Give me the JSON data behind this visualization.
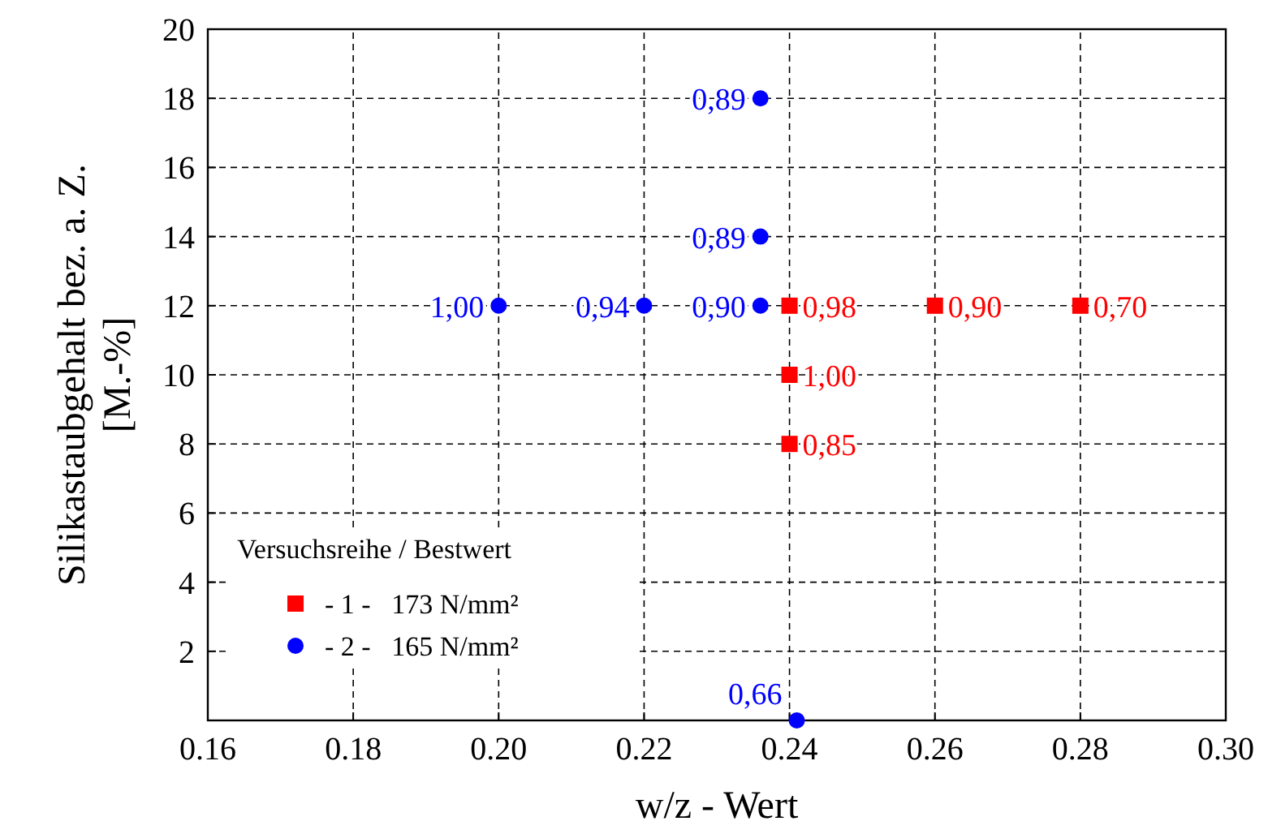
{
  "chart_data": {
    "type": "scatter",
    "xlabel": "w/z - Wert",
    "ylabel": "Silikastaubgehalt bez. a. Z.\n[M.-%]",
    "legend_title": "Versuchsreihe / Bestwert",
    "xlim": [
      0.16,
      0.3
    ],
    "xticks": [
      {
        "value": 0.16,
        "label": "0.16"
      },
      {
        "value": 0.18,
        "label": "0.18"
      },
      {
        "value": 0.2,
        "label": "0.20"
      },
      {
        "value": 0.22,
        "label": "0.22"
      },
      {
        "value": 0.24,
        "label": "0.24"
      },
      {
        "value": 0.26,
        "label": "0.26"
      },
      {
        "value": 0.28,
        "label": "0.28"
      },
      {
        "value": 0.3,
        "label": "0.30"
      }
    ],
    "ylim": [
      0,
      20
    ],
    "yticks": [
      2,
      4,
      6,
      8,
      10,
      12,
      14,
      16,
      18,
      20
    ],
    "grid": true,
    "legend": "bottom left",
    "series": [
      {
        "name": "- 1 -   173 N/mm²",
        "color": "#ff0000",
        "marker": "square",
        "x": [
          0.24,
          0.24,
          0.24,
          0.26,
          0.28
        ],
        "values": [
          12,
          10,
          8,
          12,
          12
        ]
      },
      {
        "name": "- 2 -   165 N/mm²",
        "color": "#0000ff",
        "marker": "circle",
        "x": [
          0.236,
          0.236,
          0.236,
          0.22,
          0.2,
          0.241
        ],
        "values": [
          18,
          14,
          12,
          12,
          12,
          0
        ]
      }
    ],
    "annotations": [
      {
        "text": "0,98",
        "x": 0.24,
        "y": 12
      },
      {
        "text": "1,00",
        "x": 0.24,
        "y": 10
      },
      {
        "text": "0,85",
        "x": 0.24,
        "y": 8
      },
      {
        "text": "0,90",
        "x": 0.26,
        "y": 12
      },
      {
        "text": "0,70",
        "x": 0.28,
        "y": 12
      },
      {
        "text": "0,89",
        "x": 0.236,
        "y": 18
      },
      {
        "text": "0,89",
        "x": 0.236,
        "y": 14
      },
      {
        "text": "0,90",
        "x": 0.236,
        "y": 12
      },
      {
        "text": "0,94",
        "x": 0.22,
        "y": 12
      },
      {
        "text": "1,00",
        "x": 0.2,
        "y": 12
      },
      {
        "text": "0,66",
        "x": 0.241,
        "y": 0
      }
    ]
  }
}
